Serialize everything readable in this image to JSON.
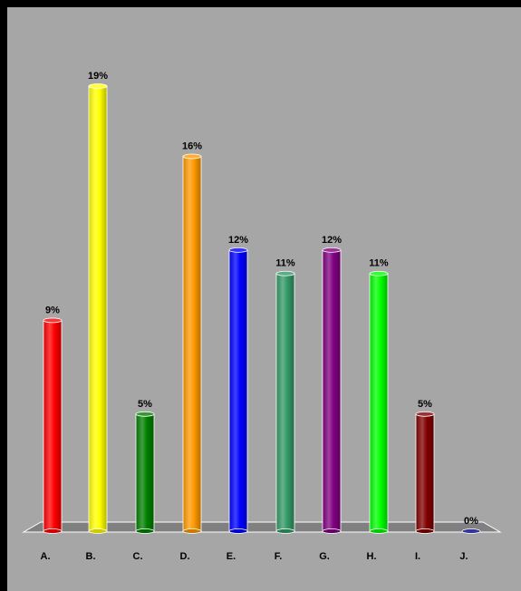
{
  "chart_data": {
    "type": "bar",
    "categories": [
      "A.",
      "B.",
      "C.",
      "D.",
      "E.",
      "F.",
      "G.",
      "H.",
      "I.",
      "J."
    ],
    "values": [
      9,
      19,
      5,
      16,
      12,
      11,
      12,
      11,
      5,
      0
    ],
    "value_labels": [
      "9%",
      "19%",
      "5%",
      "16%",
      "12%",
      "11%",
      "12%",
      "11%",
      "5%",
      "0%"
    ],
    "colors": [
      "#ff0000",
      "#ffff00",
      "#008000",
      "#ff9900",
      "#0000ff",
      "#339966",
      "#800080",
      "#00ff00",
      "#800000",
      "#000080"
    ],
    "title": "",
    "xlabel": "",
    "ylabel": "",
    "ylim": [
      0,
      19
    ],
    "grid": false,
    "legend": "none",
    "background_color": "#a6a6a6",
    "floor_color": "#808080"
  }
}
